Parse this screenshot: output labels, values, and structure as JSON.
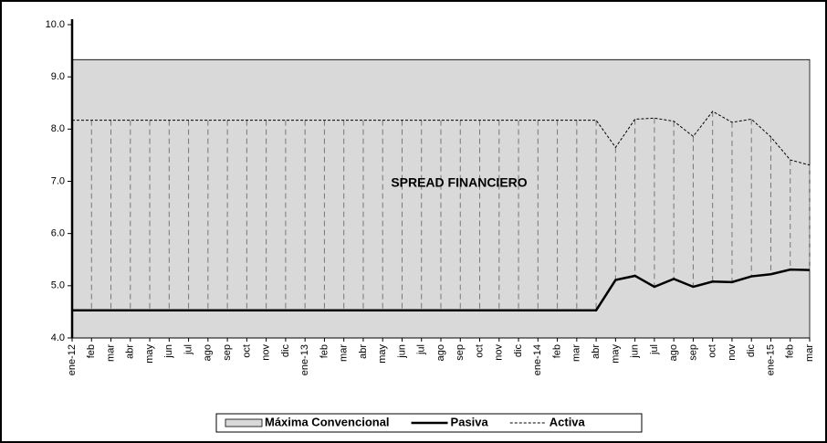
{
  "chart_data": {
    "type": "line",
    "annotations": [
      "SPREAD FINANCIERO"
    ],
    "categories": [
      "ene-12",
      "feb",
      "mar",
      "abr",
      "may",
      "jun",
      "jul",
      "ago",
      "sep",
      "oct",
      "nov",
      "dic",
      "ene-13",
      "feb",
      "mar",
      "abr",
      "may",
      "jun",
      "jul",
      "ago",
      "sep",
      "oct",
      "nov",
      "dic",
      "ene-14",
      "feb",
      "mar",
      "abr",
      "may",
      "jun",
      "jul",
      "ago",
      "sep",
      "oct",
      "nov",
      "dic",
      "ene-15",
      "feb",
      "mar"
    ],
    "series": [
      {
        "name": "Máxima Convencional",
        "kind": "area",
        "color": "#d9d9d9",
        "values": [
          9.33,
          9.33,
          9.33,
          9.33,
          9.33,
          9.33,
          9.33,
          9.33,
          9.33,
          9.33,
          9.33,
          9.33,
          9.33,
          9.33,
          9.33,
          9.33,
          9.33,
          9.33,
          9.33,
          9.33,
          9.33,
          9.33,
          9.33,
          9.33,
          9.33,
          9.33,
          9.33,
          9.33,
          9.33,
          9.33,
          9.33,
          9.33,
          9.33,
          9.33,
          9.33,
          9.33,
          9.33,
          9.33,
          9.33
        ]
      },
      {
        "name": "Pasiva",
        "kind": "line",
        "color": "#000000",
        "dash": false,
        "values": [
          4.53,
          4.53,
          4.53,
          4.53,
          4.53,
          4.53,
          4.53,
          4.53,
          4.53,
          4.53,
          4.53,
          4.53,
          4.53,
          4.53,
          4.53,
          4.53,
          4.53,
          4.53,
          4.53,
          4.53,
          4.53,
          4.53,
          4.53,
          4.53,
          4.53,
          4.53,
          4.53,
          4.53,
          5.11,
          5.19,
          4.98,
          5.13,
          4.98,
          5.08,
          5.07,
          5.18,
          5.22,
          5.31,
          5.3
        ]
      },
      {
        "name": "Activa",
        "kind": "line",
        "color": "#000000",
        "dash": true,
        "values": [
          8.17,
          8.17,
          8.17,
          8.17,
          8.17,
          8.17,
          8.17,
          8.17,
          8.17,
          8.17,
          8.17,
          8.17,
          8.17,
          8.17,
          8.17,
          8.17,
          8.17,
          8.17,
          8.17,
          8.17,
          8.17,
          8.17,
          8.17,
          8.17,
          8.17,
          8.17,
          8.17,
          8.17,
          7.65,
          8.19,
          8.21,
          8.15,
          7.86,
          8.34,
          8.13,
          8.19,
          7.85,
          7.41,
          7.31
        ]
      }
    ],
    "ylim": [
      4,
      10
    ],
    "yticks": [
      {
        "value": 4,
        "label": "4.0"
      },
      {
        "value": 5,
        "label": "5.0"
      },
      {
        "value": 6,
        "label": "6.0"
      },
      {
        "value": 7,
        "label": "7.0"
      },
      {
        "value": 8,
        "label": "8.0"
      },
      {
        "value": 9,
        "label": "9.0"
      },
      {
        "value": 10,
        "label": "10.0"
      }
    ],
    "drop_lines": true,
    "grid": false,
    "legend": "bottom"
  }
}
